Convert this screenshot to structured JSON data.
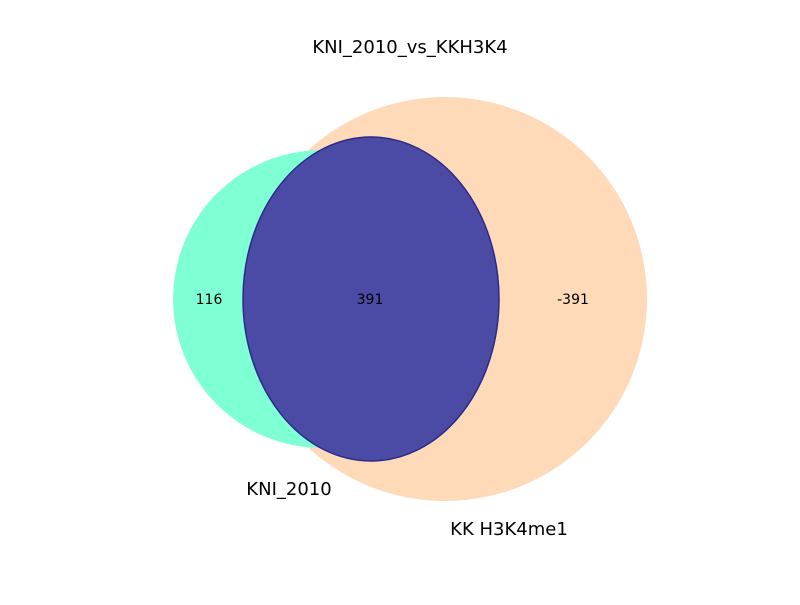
{
  "title": "KNI_2010_vs_KKH3K4",
  "sets": [
    {
      "label": "KNI_2010",
      "color": "#7fffd4"
    },
    {
      "label": "KK H3K4me1",
      "color": "#ffdab9"
    }
  ],
  "regions": {
    "only_a": "116",
    "intersection": "391",
    "only_b": "-391"
  },
  "intersection_color": "#4b4ba5",
  "intersection_edge_color": "#2a2a8a"
}
